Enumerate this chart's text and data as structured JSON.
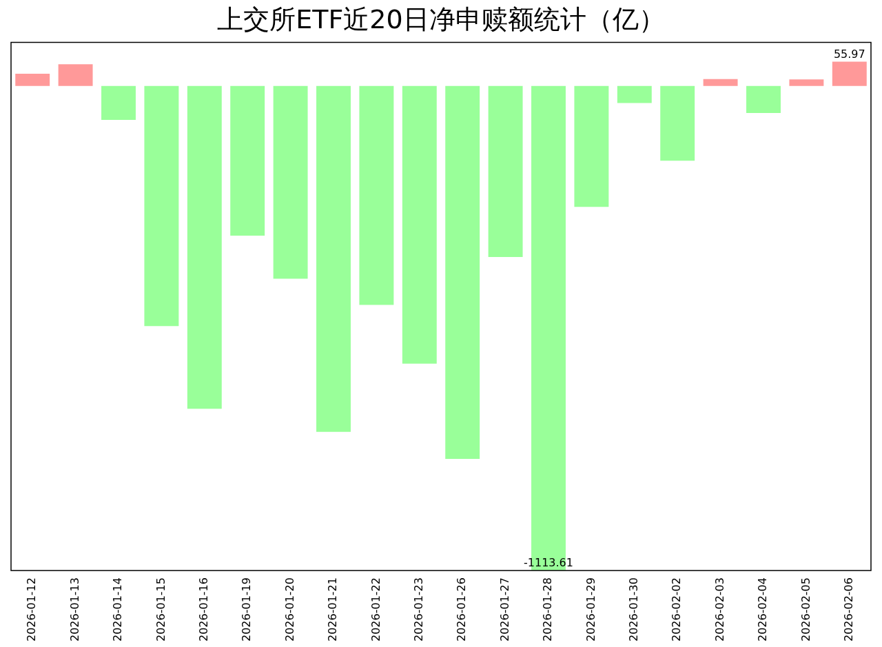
{
  "chart_data": {
    "type": "bar",
    "title": "上交所ETF近20日净申赎额统计（亿）",
    "categories": [
      "2026-01-12",
      "2026-01-13",
      "2026-01-14",
      "2026-01-15",
      "2026-01-16",
      "2026-01-19",
      "2026-01-20",
      "2026-01-21",
      "2026-01-22",
      "2026-01-23",
      "2026-01-26",
      "2026-01-27",
      "2026-01-28",
      "2026-01-29",
      "2026-01-30",
      "2026-02-02",
      "2026-02-03",
      "2026-02-04",
      "2026-02-05",
      "2026-02-06"
    ],
    "values": [
      28,
      50,
      -78,
      -552,
      -742,
      -344,
      -443,
      -795,
      -503,
      -638,
      -857,
      -393,
      -1113.61,
      -278,
      -39,
      -172,
      16,
      -62,
      15,
      55.97
    ],
    "colors": [
      "#ff9999",
      "#ff9999",
      "#99ff99",
      "#99ff99",
      "#99ff99",
      "#99ff99",
      "#99ff99",
      "#99ff99",
      "#99ff99",
      "#99ff99",
      "#99ff99",
      "#99ff99",
      "#99ff99",
      "#99ff99",
      "#99ff99",
      "#99ff99",
      "#ff9999",
      "#99ff99",
      "#ff9999",
      "#ff9999"
    ],
    "value_labels": [
      null,
      null,
      null,
      null,
      null,
      null,
      null,
      null,
      null,
      null,
      null,
      null,
      "-1113.61",
      null,
      null,
      null,
      null,
      null,
      null,
      "55.97"
    ],
    "ylim": [
      -1113.61,
      100
    ],
    "tick_labels": "x",
    "grid": false,
    "legend": false
  }
}
